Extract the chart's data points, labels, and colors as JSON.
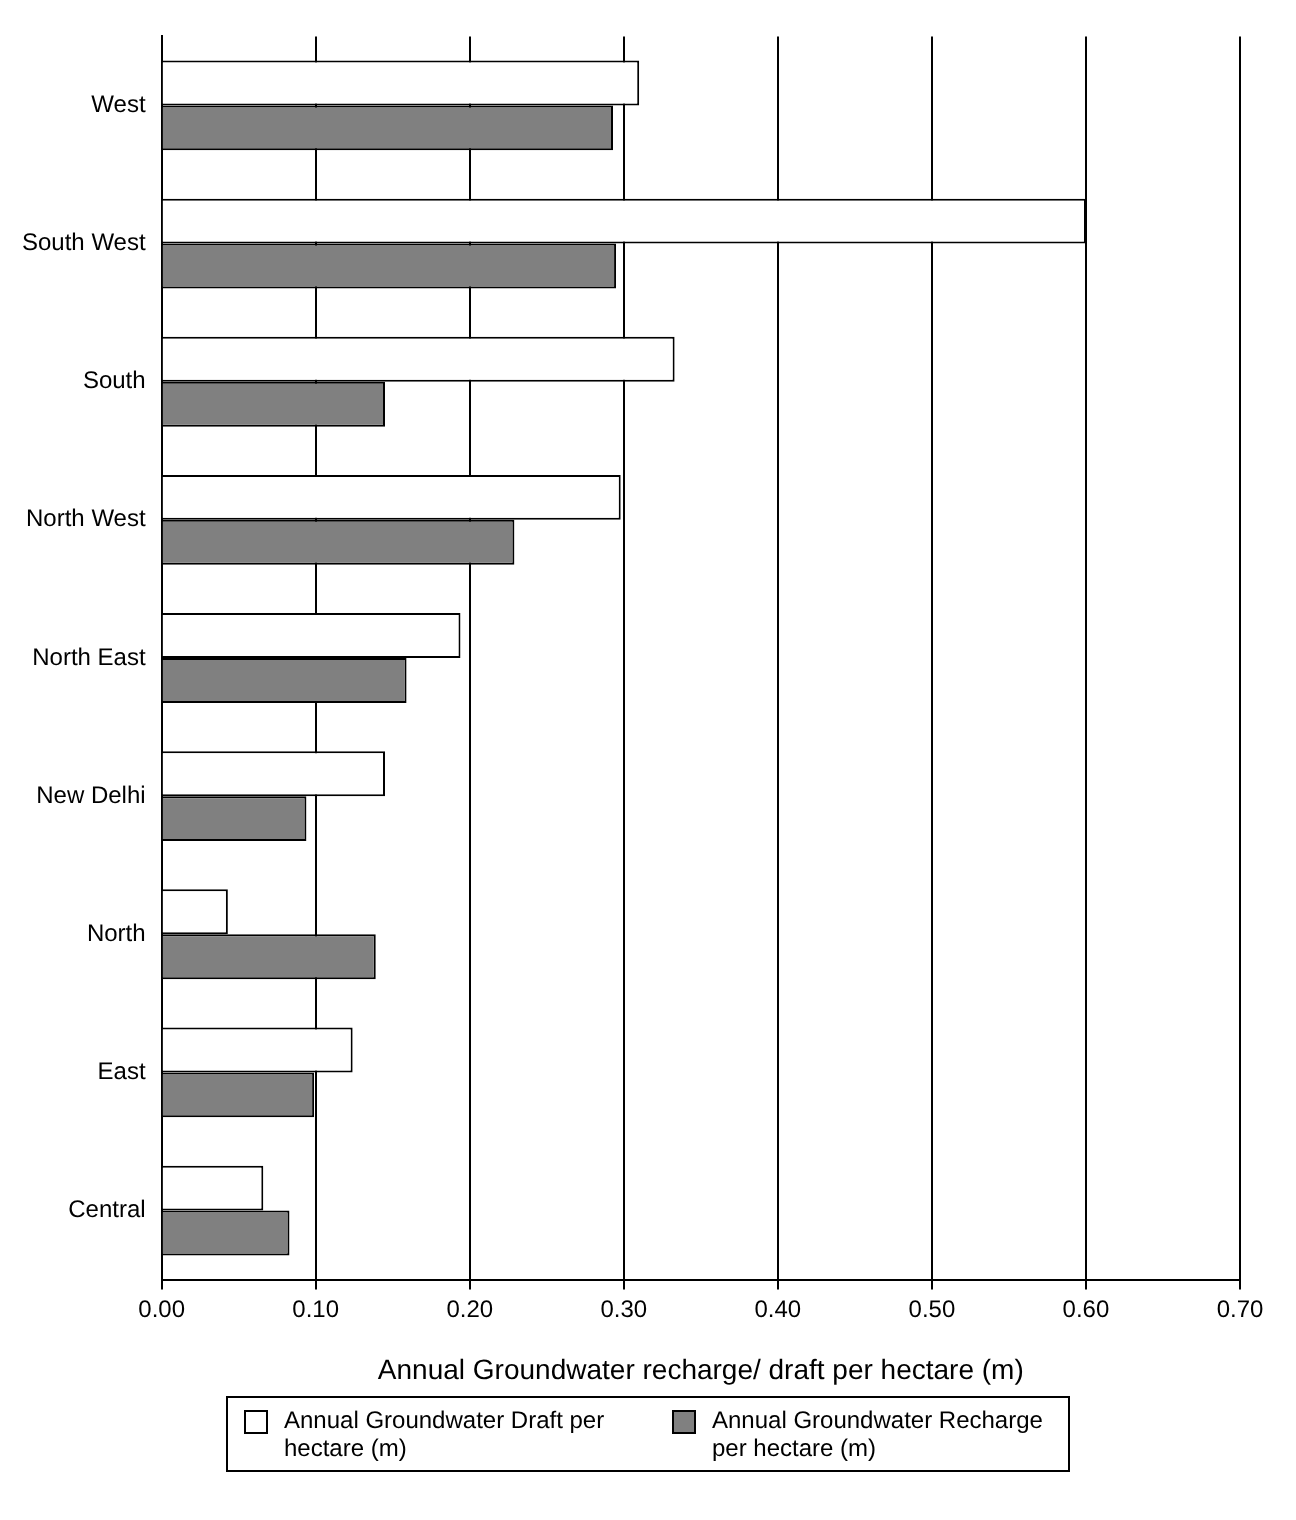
{
  "chart_data": {
    "type": "bar",
    "orientation": "horizontal",
    "xlabel": "Annual Groundwater recharge/ draft per hectare (m)",
    "categories": [
      "West",
      "South West",
      "South",
      "North West",
      "North East",
      "New Delhi",
      "North",
      "East",
      "Central"
    ],
    "series": [
      {
        "name": "Annual Groundwater Draft per hectare (m)",
        "color": "#ffffff",
        "values": [
          0.31,
          0.6,
          0.333,
          0.298,
          0.194,
          0.145,
          0.043,
          0.124,
          0.066
        ]
      },
      {
        "name": "Annual Groundwater Recharge per hectare (m)",
        "color": "#808080",
        "values": [
          0.293,
          0.295,
          0.145,
          0.229,
          0.159,
          0.094,
          0.139,
          0.099,
          0.083
        ]
      }
    ],
    "xlim": [
      0,
      0.7
    ],
    "xticks": [
      {
        "value": 0,
        "label": "0.00"
      },
      {
        "value": 0.1,
        "label": "0.10"
      },
      {
        "value": 0.2,
        "label": "0.20"
      },
      {
        "value": 0.3,
        "label": "0.30"
      },
      {
        "value": 0.4,
        "label": "0.40"
      },
      {
        "value": 0.5,
        "label": "0.50"
      },
      {
        "value": 0.6,
        "label": "0.60"
      },
      {
        "value": 0.7,
        "label": "0.70"
      }
    ],
    "grid": "x",
    "legend": "bottom"
  }
}
